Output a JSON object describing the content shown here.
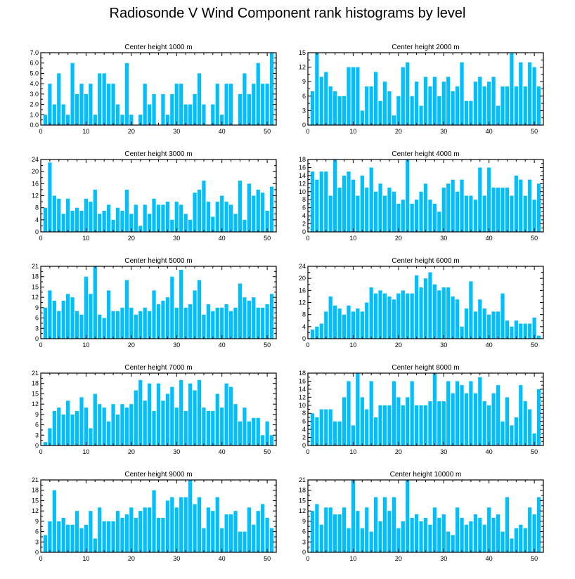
{
  "title": "Radiosonde V Wind Component rank histograms by level",
  "bar_color": "#00BFFF",
  "chart_data": [
    {
      "type": "bar",
      "title": "Center height 1000 m",
      "x": [
        1,
        2,
        3,
        4,
        5,
        6,
        7,
        8,
        9,
        10,
        11,
        12,
        13,
        14,
        15,
        16,
        17,
        18,
        19,
        20,
        21,
        22,
        23,
        24,
        25,
        26,
        27,
        28,
        29,
        30,
        31,
        32,
        33,
        34,
        35,
        36,
        37,
        38,
        39,
        40,
        41,
        42,
        43,
        44,
        45,
        46,
        47,
        48,
        49,
        50,
        51
      ],
      "values": [
        1,
        4,
        2,
        5,
        2,
        1,
        6,
        3,
        4,
        3,
        4,
        1,
        5,
        5,
        4,
        4,
        2,
        1,
        6,
        1,
        0,
        1,
        4,
        2,
        3,
        0,
        3,
        1,
        3,
        4,
        4,
        2,
        2,
        3,
        5,
        2,
        0,
        2,
        4,
        1,
        4,
        4,
        0,
        3,
        5,
        3,
        4,
        6,
        4,
        4,
        7
      ],
      "xlim": [
        0,
        52
      ],
      "ylim": [
        0,
        7
      ],
      "yticks": [
        0,
        1,
        2,
        3,
        4,
        5,
        6,
        7
      ],
      "ytick_labels": [
        "0.0",
        "1.0",
        "2.0",
        "3.0",
        "4.0",
        "5.0",
        "6.0",
        "7.0"
      ],
      "xticks": [
        0,
        10,
        20,
        30,
        40,
        50
      ]
    },
    {
      "type": "bar",
      "title": "Center height 2000 m",
      "x": [
        1,
        2,
        3,
        4,
        5,
        6,
        7,
        8,
        9,
        10,
        11,
        12,
        13,
        14,
        15,
        16,
        17,
        18,
        19,
        20,
        21,
        22,
        23,
        24,
        25,
        26,
        27,
        28,
        29,
        30,
        31,
        32,
        33,
        34,
        35,
        36,
        37,
        38,
        39,
        40,
        41,
        42,
        43,
        44,
        45,
        46,
        47,
        48,
        49,
        50,
        51
      ],
      "values": [
        7,
        15,
        10,
        11,
        8,
        7,
        6,
        6,
        12,
        12,
        12,
        3,
        8,
        8,
        11,
        5,
        9,
        7,
        2,
        6,
        12,
        13,
        6,
        9,
        4,
        10,
        8,
        10,
        6,
        9,
        10,
        7,
        8,
        13,
        5,
        5,
        9,
        10,
        8,
        9,
        10,
        4,
        8,
        8,
        15,
        8,
        13,
        8,
        13,
        12,
        8
      ],
      "xlim": [
        0,
        52
      ],
      "ylim": [
        0,
        15
      ],
      "yticks": [
        0,
        3,
        6,
        9,
        12,
        15
      ],
      "ytick_labels": [
        "0",
        "3",
        "6",
        "9",
        "12",
        "15"
      ],
      "xticks": [
        0,
        10,
        20,
        30,
        40,
        50
      ]
    },
    {
      "type": "bar",
      "title": "Center height 3000 m",
      "x": [
        1,
        2,
        3,
        4,
        5,
        6,
        7,
        8,
        9,
        10,
        11,
        12,
        13,
        14,
        15,
        16,
        17,
        18,
        19,
        20,
        21,
        22,
        23,
        24,
        25,
        26,
        27,
        28,
        29,
        30,
        31,
        32,
        33,
        34,
        35,
        36,
        37,
        38,
        39,
        40,
        41,
        42,
        43,
        44,
        45,
        46,
        47,
        48,
        49,
        50,
        51
      ],
      "values": [
        8,
        23,
        12,
        11,
        6,
        11,
        7,
        8,
        7,
        11,
        10,
        14,
        6,
        7,
        9,
        4,
        8,
        7,
        14,
        6,
        9,
        2,
        9,
        6,
        11,
        9,
        9,
        10,
        4,
        10,
        9,
        6,
        4,
        13,
        14,
        17,
        10,
        5,
        10,
        12,
        10,
        9,
        6,
        17,
        4,
        16,
        12,
        14,
        13,
        7,
        15
      ],
      "xlim": [
        0,
        52
      ],
      "ylim": [
        0,
        24
      ],
      "yticks": [
        0,
        4,
        8,
        12,
        16,
        20,
        24
      ],
      "ytick_labels": [
        "0",
        "4",
        "8",
        "12",
        "16",
        "20",
        "24"
      ],
      "xticks": [
        0,
        10,
        20,
        30,
        40,
        50
      ]
    },
    {
      "type": "bar",
      "title": "Center height 4000 m",
      "x": [
        1,
        2,
        3,
        4,
        5,
        6,
        7,
        8,
        9,
        10,
        11,
        12,
        13,
        14,
        15,
        16,
        17,
        18,
        19,
        20,
        21,
        22,
        23,
        24,
        25,
        26,
        27,
        28,
        29,
        30,
        31,
        32,
        33,
        34,
        35,
        36,
        37,
        38,
        39,
        40,
        41,
        42,
        43,
        44,
        45,
        46,
        47,
        48,
        49,
        50,
        51
      ],
      "values": [
        15,
        13,
        15,
        15,
        9,
        18,
        11,
        14,
        15,
        13,
        9,
        14,
        11,
        16,
        10,
        12,
        9,
        11,
        10,
        7,
        8,
        18,
        7,
        8,
        10,
        12,
        8,
        7,
        5,
        11,
        12,
        13,
        10,
        13,
        9,
        9,
        8,
        16,
        9,
        16,
        11,
        11,
        11,
        11,
        9,
        14,
        13,
        9,
        13,
        8,
        12
      ],
      "xlim": [
        0,
        52
      ],
      "ylim": [
        0,
        18
      ],
      "yticks": [
        0,
        2,
        4,
        6,
        8,
        10,
        12,
        14,
        16,
        18
      ],
      "ytick_labels": [
        "0",
        "2",
        "4",
        "6",
        "8",
        "10",
        "12",
        "14",
        "16",
        "18"
      ],
      "xticks": [
        0,
        10,
        20,
        30,
        40,
        50
      ]
    },
    {
      "type": "bar",
      "title": "Center height 5000 m",
      "x": [
        1,
        2,
        3,
        4,
        5,
        6,
        7,
        8,
        9,
        10,
        11,
        12,
        13,
        14,
        15,
        16,
        17,
        18,
        19,
        20,
        21,
        22,
        23,
        24,
        25,
        26,
        27,
        28,
        29,
        30,
        31,
        32,
        33,
        34,
        35,
        36,
        37,
        38,
        39,
        40,
        41,
        42,
        43,
        44,
        45,
        46,
        47,
        48,
        49,
        50,
        51
      ],
      "values": [
        9,
        14,
        11,
        8,
        11,
        13,
        12,
        8,
        7,
        18,
        13,
        21,
        7,
        6,
        14,
        8,
        8,
        9,
        17,
        9,
        7,
        8,
        9,
        8,
        14,
        10,
        11,
        12,
        18,
        9,
        20,
        9,
        10,
        14,
        17,
        7,
        10,
        8,
        9,
        9,
        10,
        8,
        9,
        16,
        12,
        11,
        12,
        9,
        9,
        10,
        13
      ],
      "xlim": [
        0,
        52
      ],
      "ylim": [
        0,
        21
      ],
      "yticks": [
        0,
        3,
        6,
        9,
        12,
        15,
        18,
        21
      ],
      "ytick_labels": [
        "0",
        "3",
        "6",
        "9",
        "12",
        "15",
        "18",
        "21"
      ],
      "xticks": [
        0,
        10,
        20,
        30,
        40,
        50
      ]
    },
    {
      "type": "bar",
      "title": "Center height 6000 m",
      "x": [
        1,
        2,
        3,
        4,
        5,
        6,
        7,
        8,
        9,
        10,
        11,
        12,
        13,
        14,
        15,
        16,
        17,
        18,
        19,
        20,
        21,
        22,
        23,
        24,
        25,
        26,
        27,
        28,
        29,
        30,
        31,
        32,
        33,
        34,
        35,
        36,
        37,
        38,
        39,
        40,
        41,
        42,
        43,
        44,
        45,
        46,
        47,
        48,
        49,
        50,
        51
      ],
      "values": [
        3,
        4,
        5,
        9,
        14,
        11,
        10,
        8,
        11,
        9,
        10,
        9,
        12,
        17,
        15,
        16,
        15,
        14,
        13,
        15,
        16,
        15,
        15,
        21,
        17,
        20,
        22,
        18,
        16,
        17,
        17,
        14,
        13,
        4,
        10,
        19,
        9,
        13,
        10,
        8,
        9,
        9,
        15,
        6,
        4,
        6,
        5,
        5,
        5,
        7,
        1
      ],
      "xlim": [
        0,
        52
      ],
      "ylim": [
        0,
        24
      ],
      "yticks": [
        0,
        4,
        8,
        12,
        16,
        20,
        24
      ],
      "ytick_labels": [
        "0",
        "4",
        "8",
        "12",
        "16",
        "20",
        "24"
      ],
      "xticks": [
        0,
        10,
        20,
        30,
        40,
        50
      ]
    },
    {
      "type": "bar",
      "title": "Center height 7000 m",
      "x": [
        1,
        2,
        3,
        4,
        5,
        6,
        7,
        8,
        9,
        10,
        11,
        12,
        13,
        14,
        15,
        16,
        17,
        18,
        19,
        20,
        21,
        22,
        23,
        24,
        25,
        26,
        27,
        28,
        29,
        30,
        31,
        32,
        33,
        34,
        35,
        36,
        37,
        38,
        39,
        40,
        41,
        42,
        43,
        44,
        45,
        46,
        47,
        48,
        49,
        50,
        51
      ],
      "values": [
        1,
        5,
        10,
        11,
        9,
        13,
        9,
        10,
        14,
        11,
        5,
        15,
        12,
        11,
        7,
        12,
        9,
        12,
        11,
        12,
        16,
        19,
        13,
        18,
        10,
        18,
        13,
        15,
        17,
        11,
        19,
        10,
        18,
        16,
        19,
        11,
        10,
        10,
        15,
        11,
        18,
        17,
        12,
        7,
        11,
        7,
        8,
        8,
        3,
        7,
        3
      ],
      "xlim": [
        0,
        52
      ],
      "ylim": [
        0,
        21
      ],
      "yticks": [
        0,
        3,
        6,
        9,
        12,
        15,
        18,
        21
      ],
      "ytick_labels": [
        "0",
        "3",
        "6",
        "9",
        "12",
        "15",
        "18",
        "21"
      ],
      "xticks": [
        0,
        10,
        20,
        30,
        40,
        50
      ]
    },
    {
      "type": "bar",
      "title": "Center height 8000 m",
      "x": [
        1,
        2,
        3,
        4,
        5,
        6,
        7,
        8,
        9,
        10,
        11,
        12,
        13,
        14,
        15,
        16,
        17,
        18,
        19,
        20,
        21,
        22,
        23,
        24,
        25,
        26,
        27,
        28,
        29,
        30,
        31,
        32,
        33,
        34,
        35,
        36,
        37,
        38,
        39,
        40,
        41,
        42,
        43,
        44,
        45,
        46,
        47,
        48,
        49,
        50,
        51
      ],
      "values": [
        8,
        7,
        9,
        9,
        9,
        6,
        6,
        12,
        16,
        5,
        18,
        12,
        9,
        16,
        7,
        10,
        10,
        10,
        16,
        12,
        10,
        12,
        16,
        10,
        10,
        10,
        11,
        18,
        11,
        11,
        16,
        13,
        16,
        15,
        13,
        16,
        13,
        17,
        11,
        10,
        13,
        15,
        6,
        12,
        5,
        7,
        15,
        11,
        9,
        3,
        14
      ],
      "xlim": [
        0,
        52
      ],
      "ylim": [
        0,
        18
      ],
      "yticks": [
        0,
        2,
        4,
        6,
        8,
        10,
        12,
        14,
        16,
        18
      ],
      "ytick_labels": [
        "0",
        "2",
        "4",
        "6",
        "8",
        "10",
        "12",
        "14",
        "16",
        "18"
      ],
      "xticks": [
        0,
        10,
        20,
        30,
        40,
        50
      ]
    },
    {
      "type": "bar",
      "title": "Center height 9000 m",
      "x": [
        1,
        2,
        3,
        4,
        5,
        6,
        7,
        8,
        9,
        10,
        11,
        12,
        13,
        14,
        15,
        16,
        17,
        18,
        19,
        20,
        21,
        22,
        23,
        24,
        25,
        26,
        27,
        28,
        29,
        30,
        31,
        32,
        33,
        34,
        35,
        36,
        37,
        38,
        39,
        40,
        41,
        42,
        43,
        44,
        45,
        46,
        47,
        48,
        49,
        50,
        51
      ],
      "values": [
        5,
        9,
        18,
        9,
        10,
        8,
        8,
        12,
        7,
        8,
        12,
        4,
        13,
        9,
        9,
        9,
        12,
        10,
        11,
        13,
        10,
        12,
        13,
        13,
        18,
        10,
        10,
        15,
        16,
        13,
        16,
        16,
        21,
        14,
        16,
        7,
        13,
        12,
        16,
        7,
        11,
        11,
        12,
        6,
        6,
        13,
        8,
        12,
        14,
        10,
        7
      ],
      "xlim": [
        0,
        52
      ],
      "ylim": [
        0,
        21
      ],
      "yticks": [
        0,
        3,
        6,
        9,
        12,
        15,
        18,
        21
      ],
      "ytick_labels": [
        "0",
        "3",
        "6",
        "9",
        "12",
        "15",
        "18",
        "21"
      ],
      "xticks": [
        0,
        10,
        20,
        30,
        40,
        50
      ]
    },
    {
      "type": "bar",
      "title": "Center height 10000 m",
      "x": [
        1,
        2,
        3,
        4,
        5,
        6,
        7,
        8,
        9,
        10,
        11,
        12,
        13,
        14,
        15,
        16,
        17,
        18,
        19,
        20,
        21,
        22,
        23,
        24,
        25,
        26,
        27,
        28,
        29,
        30,
        31,
        32,
        33,
        34,
        35,
        36,
        37,
        38,
        39,
        40,
        41,
        42,
        43,
        44,
        45,
        46,
        47,
        48,
        49,
        50,
        51
      ],
      "values": [
        12,
        14,
        8,
        13,
        13,
        11,
        11,
        13,
        7,
        21,
        12,
        7,
        13,
        6,
        16,
        9,
        16,
        12,
        16,
        7,
        9,
        21,
        10,
        11,
        9,
        10,
        8,
        13,
        10,
        11,
        6,
        5,
        13,
        10,
        8,
        9,
        11,
        10,
        8,
        13,
        10,
        11,
        6,
        16,
        4,
        7,
        8,
        7,
        13,
        11,
        16
      ],
      "xlim": [
        0,
        52
      ],
      "ylim": [
        0,
        21
      ],
      "yticks": [
        0,
        3,
        6,
        9,
        12,
        15,
        18,
        21
      ],
      "ytick_labels": [
        "0",
        "3",
        "6",
        "9",
        "12",
        "15",
        "18",
        "21"
      ],
      "xticks": [
        0,
        10,
        20,
        30,
        40,
        50
      ]
    }
  ]
}
